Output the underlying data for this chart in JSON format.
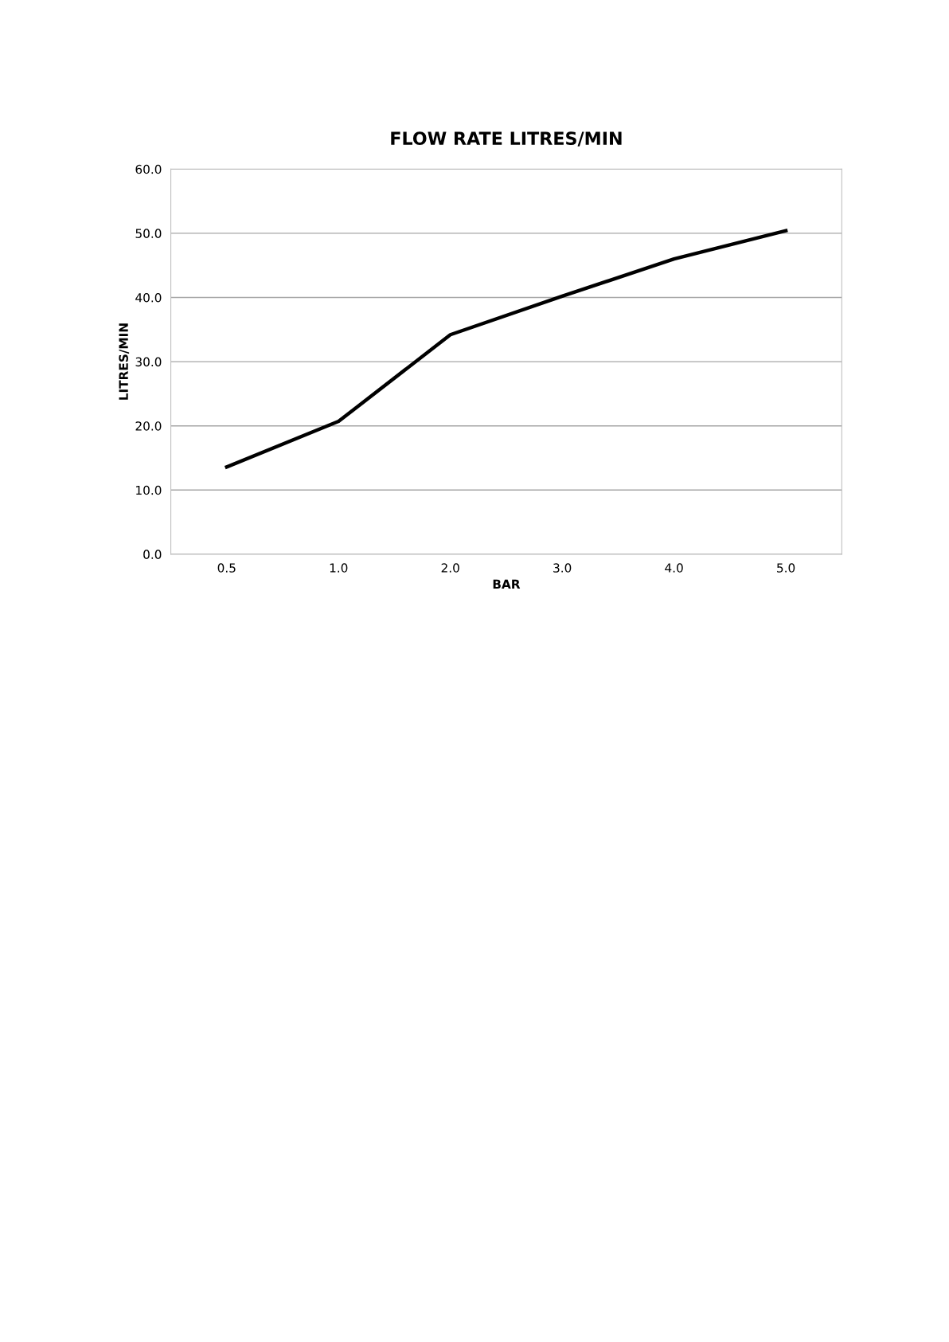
{
  "chart_data": {
    "type": "line",
    "title": "FLOW RATE LITRES/MIN",
    "xlabel": "BAR",
    "ylabel": "LITRES/MIN",
    "categories": [
      "0.5",
      "1.0",
      "2.0",
      "3.0",
      "4.0",
      "5.0"
    ],
    "series": [
      {
        "color": "#000000",
        "values": [
          13.6,
          20.7,
          34.2,
          40.2,
          46.0,
          50.4
        ]
      }
    ],
    "ylim": [
      0,
      60
    ],
    "yticks": [
      {
        "value": 0,
        "label": "0.0"
      },
      {
        "value": 10,
        "label": "10.0"
      },
      {
        "value": 20,
        "label": "20.0"
      },
      {
        "value": 30,
        "label": "30.0"
      },
      {
        "value": 40,
        "label": "40.0"
      },
      {
        "value": 50,
        "label": "50.0"
      },
      {
        "value": 60,
        "label": "60.0"
      }
    ],
    "grid": "y",
    "marker": "none",
    "line_style": "solid"
  }
}
